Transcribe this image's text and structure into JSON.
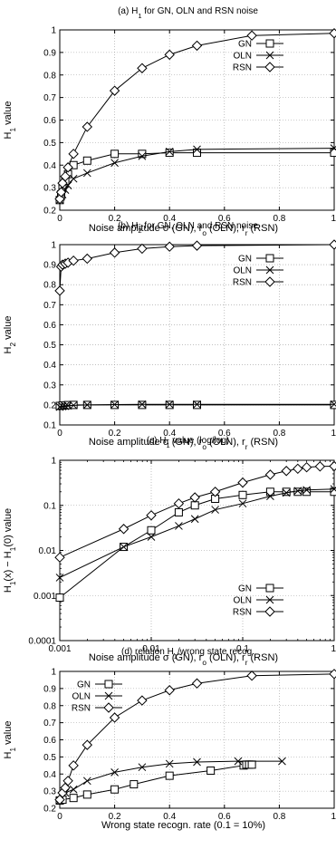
{
  "chart_data": [
    {
      "type": "line",
      "title": "(a) H1 for GN, OLN and RSN noise",
      "xlabel": "Noise amplitude σ (GN), ro (OLN), rr (RSN)",
      "ylabel": "H1 value",
      "xscale": "linear",
      "yscale": "linear",
      "xlim": [
        0,
        1
      ],
      "ylim": [
        0.2,
        1.0
      ],
      "xticks": [
        "0",
        "0.2",
        "0.4",
        "0.6",
        "0.8",
        "1"
      ],
      "xtick_values": [
        0,
        0.2,
        0.4,
        0.6,
        0.8,
        1
      ],
      "yticks": [
        "0.2",
        "0.3",
        "0.4",
        "0.5",
        "0.6",
        "0.7",
        "0.8",
        "0.9",
        "1"
      ],
      "ytick_values": [
        0.2,
        0.3,
        0.4,
        0.5,
        0.6,
        0.7,
        0.8,
        0.9,
        1.0
      ],
      "grid": true,
      "legend_position": "top-right",
      "series": [
        {
          "name": "GN",
          "marker": "square",
          "x": [
            0,
            0.005,
            0.01,
            0.02,
            0.03,
            0.05,
            0.1,
            0.2,
            0.3,
            0.4,
            0.5,
            1.0
          ],
          "y": [
            0.245,
            0.27,
            0.3,
            0.33,
            0.36,
            0.4,
            0.42,
            0.45,
            0.45,
            0.455,
            0.455,
            0.455
          ]
        },
        {
          "name": "OLN",
          "marker": "x",
          "x": [
            0,
            0.005,
            0.01,
            0.02,
            0.03,
            0.05,
            0.1,
            0.2,
            0.3,
            0.4,
            0.5,
            1.0
          ],
          "y": [
            0.245,
            0.26,
            0.27,
            0.29,
            0.31,
            0.34,
            0.365,
            0.41,
            0.44,
            0.46,
            0.47,
            0.475
          ]
        },
        {
          "name": "RSN",
          "marker": "diamond",
          "x": [
            0,
            0.005,
            0.01,
            0.02,
            0.03,
            0.05,
            0.1,
            0.2,
            0.3,
            0.4,
            0.5,
            0.7,
            1.0
          ],
          "y": [
            0.25,
            0.28,
            0.32,
            0.35,
            0.39,
            0.45,
            0.57,
            0.73,
            0.83,
            0.89,
            0.93,
            0.975,
            0.985
          ]
        }
      ]
    },
    {
      "type": "line",
      "title": "(b) H2 for GN, OLN and RSN noise",
      "xlabel": "Noise amplitude  σ (GN), ro (OLN), rr (RSN)",
      "ylabel": "H2 value",
      "xscale": "linear",
      "yscale": "linear",
      "xlim": [
        0,
        1
      ],
      "ylim": [
        0.1,
        1.0
      ],
      "xticks": [
        "0",
        "0.2",
        "0.4",
        "0.6",
        "0.8",
        "1"
      ],
      "xtick_values": [
        0,
        0.2,
        0.4,
        0.6,
        0.8,
        1
      ],
      "yticks": [
        "0.1",
        "0.2",
        "0.3",
        "0.4",
        "0.5",
        "0.6",
        "0.7",
        "0.8",
        "0.9",
        "1"
      ],
      "ytick_values": [
        0.1,
        0.2,
        0.3,
        0.4,
        0.5,
        0.6,
        0.7,
        0.8,
        0.9,
        1.0
      ],
      "grid": true,
      "legend_position": "top-right",
      "series": [
        {
          "name": "GN",
          "marker": "square",
          "x": [
            0,
            0.01,
            0.02,
            0.03,
            0.05,
            0.1,
            0.2,
            0.3,
            0.4,
            0.5,
            1.0
          ],
          "y": [
            0.195,
            0.197,
            0.198,
            0.199,
            0.2,
            0.2,
            0.2,
            0.2,
            0.2,
            0.2,
            0.2
          ]
        },
        {
          "name": "OLN",
          "marker": "x",
          "x": [
            0,
            0.01,
            0.02,
            0.03,
            0.05,
            0.1,
            0.2,
            0.3,
            0.4,
            0.5,
            1.0
          ],
          "y": [
            0.19,
            0.192,
            0.194,
            0.196,
            0.198,
            0.2,
            0.202,
            0.203,
            0.203,
            0.203,
            0.203
          ]
        },
        {
          "name": "RSN",
          "marker": "diamond",
          "x": [
            0,
            0.005,
            0.01,
            0.02,
            0.03,
            0.05,
            0.1,
            0.2,
            0.3,
            0.4,
            0.5,
            1.0
          ],
          "y": [
            0.77,
            0.89,
            0.9,
            0.905,
            0.91,
            0.92,
            0.93,
            0.96,
            0.98,
            0.99,
            0.995,
            1.0
          ]
        }
      ]
    },
    {
      "type": "line",
      "title": "(c) H1 value (log/log)",
      "xlabel": "Noise amplitude  σ (GN), ro (OLN), rr (RSN)",
      "ylabel": "H1(x) − H1(0) value",
      "xscale": "log",
      "yscale": "log",
      "xlim": [
        0.001,
        1
      ],
      "ylim": [
        0.0001,
        1
      ],
      "xticks": [
        "0.001",
        "0.01",
        "0.1",
        "1"
      ],
      "xtick_values": [
        0.001,
        0.01,
        0.1,
        1
      ],
      "yticks": [
        "0.0001",
        "0.001",
        "0.01",
        "0.1",
        "1"
      ],
      "ytick_values": [
        0.0001,
        0.001,
        0.01,
        0.1,
        1
      ],
      "grid": true,
      "legend_position": "bottom-right",
      "series": [
        {
          "name": "GN",
          "marker": "square",
          "x": [
            0.001,
            0.005,
            0.01,
            0.02,
            0.03,
            0.05,
            0.1,
            0.2,
            0.3,
            0.4,
            0.5,
            1.0
          ],
          "y": [
            0.0009,
            0.012,
            0.028,
            0.07,
            0.1,
            0.14,
            0.17,
            0.2,
            0.2,
            0.2,
            0.2,
            0.2
          ]
        },
        {
          "name": "OLN",
          "marker": "x",
          "x": [
            0.001,
            0.005,
            0.01,
            0.02,
            0.03,
            0.05,
            0.1,
            0.2,
            0.3,
            0.4,
            0.5,
            1.0
          ],
          "y": [
            0.0025,
            0.012,
            0.02,
            0.035,
            0.05,
            0.08,
            0.11,
            0.16,
            0.19,
            0.21,
            0.22,
            0.23
          ]
        },
        {
          "name": "RSN",
          "marker": "diamond",
          "x": [
            0.001,
            0.005,
            0.01,
            0.02,
            0.03,
            0.05,
            0.1,
            0.2,
            0.3,
            0.4,
            0.5,
            0.7,
            1.0
          ],
          "y": [
            0.007,
            0.03,
            0.06,
            0.11,
            0.15,
            0.2,
            0.32,
            0.48,
            0.58,
            0.65,
            0.7,
            0.73,
            0.74
          ]
        }
      ]
    },
    {
      "type": "line",
      "title": "(d) relation H1/wrong state recog.",
      "xlabel": "Wrong state recogn. rate (0.1 = 10%)",
      "ylabel": "H1 value",
      "xscale": "linear",
      "yscale": "linear",
      "xlim": [
        0,
        1
      ],
      "ylim": [
        0.2,
        1.0
      ],
      "xticks": [
        "0",
        "0.2",
        "0.4",
        "0.6",
        "0.8",
        "1"
      ],
      "xtick_values": [
        0,
        0.2,
        0.4,
        0.6,
        0.8,
        1
      ],
      "yticks": [
        "0.2",
        "0.3",
        "0.4",
        "0.5",
        "0.6",
        "0.7",
        "0.8",
        "0.9",
        "1"
      ],
      "ytick_values": [
        0.2,
        0.3,
        0.4,
        0.5,
        0.6,
        0.7,
        0.8,
        0.9,
        1.0
      ],
      "grid": true,
      "legend_position": "top-left",
      "series": [
        {
          "name": "GN",
          "marker": "square",
          "x": [
            0,
            0.01,
            0.05,
            0.1,
            0.2,
            0.27,
            0.4,
            0.55,
            0.67,
            0.68,
            0.69,
            0.7
          ],
          "y": [
            0.245,
            0.25,
            0.26,
            0.28,
            0.31,
            0.34,
            0.39,
            0.42,
            0.45,
            0.455,
            0.455,
            0.455
          ]
        },
        {
          "name": "OLN",
          "marker": "x",
          "x": [
            0,
            0.02,
            0.05,
            0.1,
            0.2,
            0.3,
            0.4,
            0.5,
            0.65,
            0.81
          ],
          "y": [
            0.245,
            0.29,
            0.31,
            0.36,
            0.41,
            0.44,
            0.46,
            0.47,
            0.475,
            0.475
          ]
        },
        {
          "name": "RSN",
          "marker": "diamond",
          "x": [
            0,
            0.01,
            0.02,
            0.03,
            0.05,
            0.1,
            0.2,
            0.3,
            0.4,
            0.5,
            0.7,
            1.0
          ],
          "y": [
            0.25,
            0.29,
            0.32,
            0.36,
            0.45,
            0.57,
            0.73,
            0.83,
            0.89,
            0.93,
            0.975,
            0.985
          ]
        }
      ]
    }
  ]
}
